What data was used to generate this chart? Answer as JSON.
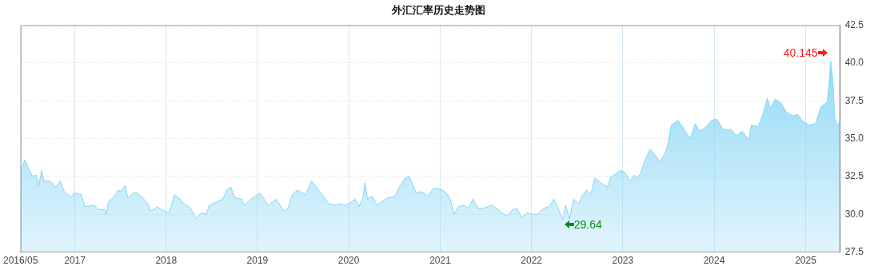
{
  "chart_data": {
    "type": "area",
    "title": "外汇汇率历史走势图",
    "x": [
      "2016-05-29",
      "2016-06-15",
      "2016-07-01",
      "2016-07-17",
      "2016-07-30",
      "2016-08-10",
      "2016-08-21",
      "2016-08-31",
      "2016-09-25",
      "2016-10-16",
      "2016-11-03",
      "2016-11-22",
      "2016-12-08",
      "2016-12-16",
      "2016-12-30",
      "2017-01-26",
      "2017-02-11",
      "2017-03-20",
      "2017-04-05",
      "2017-05-02",
      "2017-05-07",
      "2017-05-15",
      "2017-06-03",
      "2017-06-24",
      "2017-07-05",
      "2017-07-21",
      "2017-08-01",
      "2017-08-22",
      "2017-09-07",
      "2017-09-29",
      "2017-10-20",
      "2017-10-31",
      "2017-11-27",
      "2017-12-13",
      "2018-01-14",
      "2018-02-04",
      "2018-02-20",
      "2018-03-14",
      "2018-04-09",
      "2018-05-01",
      "2018-05-22",
      "2018-06-10",
      "2018-06-23",
      "2018-07-20",
      "2018-08-16",
      "2018-09-01",
      "2018-09-17",
      "2018-10-03",
      "2018-10-30",
      "2018-11-09",
      "2018-12-06",
      "2019-01-12",
      "2019-01-28",
      "2019-02-13",
      "2019-03-17",
      "2019-04-18",
      "2019-05-04",
      "2019-05-20",
      "2019-06-10",
      "2019-07-12",
      "2019-08-05",
      "2019-08-21",
      "2019-09-06",
      "2019-09-22",
      "2019-10-13",
      "2019-11-08",
      "2019-11-29",
      "2019-12-20",
      "2020-01-11",
      "2020-01-26",
      "2020-02-11",
      "2020-02-27",
      "2020-03-06",
      "2020-03-16",
      "2020-04-04",
      "2020-04-23",
      "2020-05-17",
      "2020-06-07",
      "2020-07-03",
      "2020-07-24",
      "2020-08-14",
      "2020-08-30",
      "2020-09-10",
      "2020-09-26",
      "2020-10-17",
      "2020-11-13",
      "2020-12-04",
      "2020-12-25",
      "2021-01-10",
      "2021-01-25",
      "2021-02-10",
      "2021-02-26",
      "2021-03-14",
      "2021-04-04",
      "2021-04-25",
      "2021-05-11",
      "2021-06-01",
      "2021-06-22",
      "2021-07-24",
      "2021-08-14",
      "2021-09-04",
      "2021-09-26",
      "2021-10-17",
      "2021-11-02",
      "2021-11-23",
      "2021-12-14",
      "2022-01-04",
      "2022-01-25",
      "2022-02-21",
      "2022-03-14",
      "2022-03-30",
      "2022-04-15",
      "2022-05-06",
      "2022-05-17",
      "2022-06-02",
      "2022-06-18",
      "2022-07-09",
      "2022-07-25",
      "2022-08-10",
      "2022-08-26",
      "2022-09-11",
      "2022-09-27",
      "2022-10-13",
      "2022-10-31",
      "2022-11-16",
      "2022-12-07",
      "2022-12-23",
      "2023-01-08",
      "2023-01-30",
      "2023-02-15",
      "2023-02-25",
      "2023-03-13",
      "2023-03-29",
      "2023-04-20",
      "2023-05-11",
      "2023-05-29",
      "2023-06-18",
      "2023-06-28",
      "2023-07-14",
      "2023-08-10",
      "2023-08-31",
      "2023-09-27",
      "2023-10-18",
      "2023-11-03",
      "2023-11-25",
      "2023-12-21",
      "2024-01-11",
      "2024-02-07",
      "2024-03-10",
      "2024-03-31",
      "2024-04-22",
      "2024-05-19",
      "2024-05-29",
      "2024-06-25",
      "2024-07-16",
      "2024-08-01",
      "2024-08-12",
      "2024-09-02",
      "2024-09-23",
      "2024-10-14",
      "2024-11-10",
      "2024-12-01",
      "2024-12-18",
      "2025-01-14",
      "2025-02-10",
      "2025-03-03",
      "2025-03-28",
      "2025-04-04",
      "2025-04-11",
      "2025-04-20",
      "2025-04-28",
      "2025-05-09",
      "2025-05-19"
    ],
    "series": [
      {
        "color": "#87d5f5",
        "values": [
          32.8,
          33.6,
          33.0,
          32.5,
          32.6,
          31.9,
          32.9,
          32.2,
          32.2,
          31.8,
          32.2,
          31.4,
          31.3,
          31.1,
          31.4,
          31.3,
          30.5,
          30.6,
          30.3,
          30.3,
          30.0,
          30.8,
          31.1,
          31.6,
          31.5,
          31.9,
          31.1,
          31.4,
          31.4,
          31.1,
          30.7,
          30.2,
          30.5,
          30.3,
          30.1,
          31.3,
          31.1,
          30.7,
          30.4,
          29.7,
          30.1,
          30.0,
          30.6,
          30.8,
          31.0,
          31.6,
          31.8,
          31.1,
          31.0,
          30.6,
          31.0,
          31.4,
          31.0,
          30.6,
          31.0,
          30.2,
          30.4,
          31.3,
          31.6,
          31.3,
          32.2,
          31.9,
          31.5,
          31.2,
          30.7,
          30.6,
          30.7,
          30.6,
          30.8,
          31.0,
          30.5,
          31.1,
          32.1,
          31.0,
          31.2,
          30.6,
          30.9,
          31.1,
          31.2,
          31.9,
          32.4,
          32.5,
          32.1,
          31.4,
          31.5,
          31.2,
          31.7,
          31.7,
          31.6,
          31.4,
          31.0,
          30.0,
          30.5,
          30.6,
          30.4,
          31.0,
          30.4,
          30.4,
          30.6,
          30.4,
          30.1,
          29.9,
          30.3,
          30.4,
          29.8,
          30.1,
          30.0,
          30.0,
          30.4,
          30.5,
          31.0,
          30.5,
          29.64,
          30.6,
          29.7,
          31.0,
          30.7,
          31.3,
          31.6,
          31.3,
          32.4,
          32.2,
          32.0,
          31.8,
          32.5,
          32.7,
          32.9,
          32.8,
          32.2,
          32.6,
          32.4,
          32.7,
          33.5,
          34.3,
          33.9,
          33.5,
          34.0,
          34.5,
          35.9,
          36.2,
          35.7,
          35.0,
          36.0,
          35.5,
          35.7,
          36.2,
          36.3,
          35.6,
          35.6,
          35.2,
          35.5,
          34.9,
          35.9,
          35.8,
          36.7,
          37.7,
          37.0,
          37.6,
          37.4,
          36.8,
          36.5,
          36.6,
          36.2,
          35.9,
          36.0,
          37.1,
          37.4,
          38.5,
          40.145,
          38.8,
          36.3,
          35.8,
          36.2
        ]
      }
    ],
    "xlim": [
      "2016-05-29",
      "2025-05-19"
    ],
    "xticks": [
      {
        "value": "2016-05-29",
        "label": "2016/05"
      },
      {
        "value": "2017-01-01",
        "label": "2017"
      },
      {
        "value": "2018-01-01",
        "label": "2018"
      },
      {
        "value": "2019-01-01",
        "label": "2019"
      },
      {
        "value": "2020-01-01",
        "label": "2020"
      },
      {
        "value": "2021-01-01",
        "label": "2021"
      },
      {
        "value": "2022-01-01",
        "label": "2022"
      },
      {
        "value": "2023-01-01",
        "label": "2023"
      },
      {
        "value": "2024-01-01",
        "label": "2024"
      },
      {
        "value": "2025-01-01",
        "label": "2025"
      }
    ],
    "ylim": [
      27.5,
      42.5
    ],
    "yticks": [
      27.5,
      {
        "value": 30,
        "label": "30.0"
      },
      32.5,
      {
        "value": 35,
        "label": "35.0"
      },
      37.5,
      {
        "value": 40,
        "label": "40.0"
      },
      42.5
    ],
    "grid": true,
    "legend": false,
    "annotations": [
      {
        "text": "40.145",
        "x": "2025-04-11",
        "y": 40.145
      },
      {
        "text": "29.64",
        "x": "2022-05-06",
        "y": 29.64
      }
    ]
  }
}
